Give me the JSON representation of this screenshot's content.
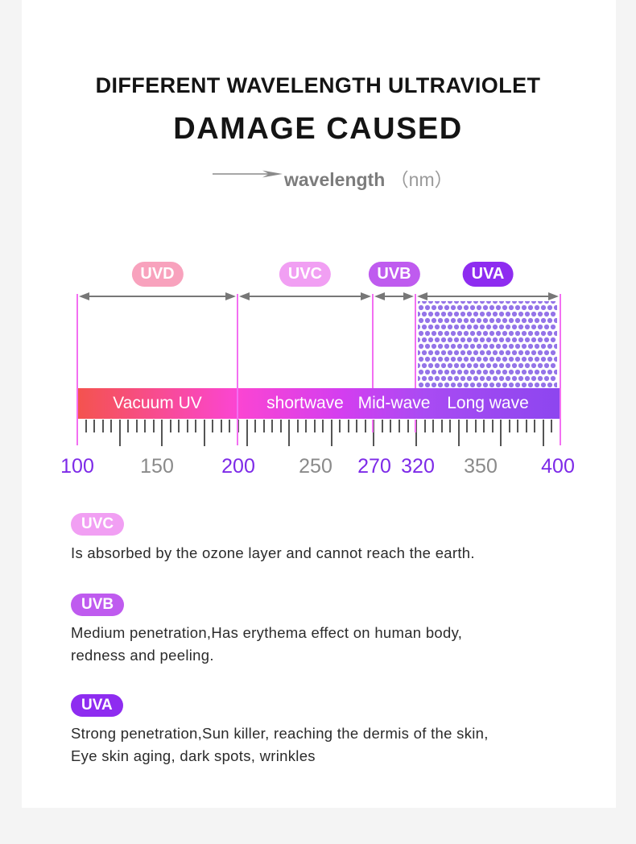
{
  "title": {
    "line1": "DIFFERENT WAVELENGTH ULTRAVIOLET",
    "line2": "DAMAGE CAUSED"
  },
  "axis": {
    "label": "wavelength",
    "unit": "（nm）"
  },
  "chart_data": {
    "type": "band-scale",
    "unit": "nm",
    "bands": [
      {
        "name": "UVD",
        "range_nm": [
          100,
          200
        ],
        "badge_color": "#f8a2bd",
        "bar_label": "Vacuum UV"
      },
      {
        "name": "UVC",
        "range_nm": [
          200,
          270
        ],
        "badge_color": "#f19ff3",
        "bar_label": "shortwave"
      },
      {
        "name": "UVB",
        "range_nm": [
          270,
          320
        ],
        "badge_color": "#bf5bef",
        "bar_label": "Mid-wave"
      },
      {
        "name": "UVA",
        "range_nm": [
          320,
          400
        ],
        "badge_color": "#8e2cf0",
        "bar_label": "Long wave",
        "pattern": "halftone-dots"
      }
    ],
    "bar_gradient": [
      "#f4534e",
      "#fb45d2",
      "#d33ef0",
      "#a94bf3",
      "#8d46ef"
    ],
    "axis_numbers": [
      {
        "value": "100",
        "highlight": true
      },
      {
        "value": "150",
        "highlight": false
      },
      {
        "value": "200",
        "highlight": true
      },
      {
        "value": "250",
        "highlight": false
      },
      {
        "value": "270",
        "highlight": true
      },
      {
        "value": "320",
        "highlight": true
      },
      {
        "value": "350",
        "highlight": false
      },
      {
        "value": "400",
        "highlight": true
      }
    ]
  },
  "sections": [
    {
      "badge": "UVC",
      "color": "#f19ff3",
      "lines": [
        "Is absorbed by the ozone layer and cannot reach the earth."
      ]
    },
    {
      "badge": "UVB",
      "color": "#bf5bef",
      "lines": [
        "Medium penetration,Has erythema effect on human body,",
        "redness and peeling."
      ]
    },
    {
      "badge": "UVA",
      "color": "#8e2cf0",
      "lines": [
        "Strong penetration,Sun killer, reaching the dermis of the skin,",
        "Eye skin aging, dark spots, wrinkles"
      ]
    }
  ]
}
